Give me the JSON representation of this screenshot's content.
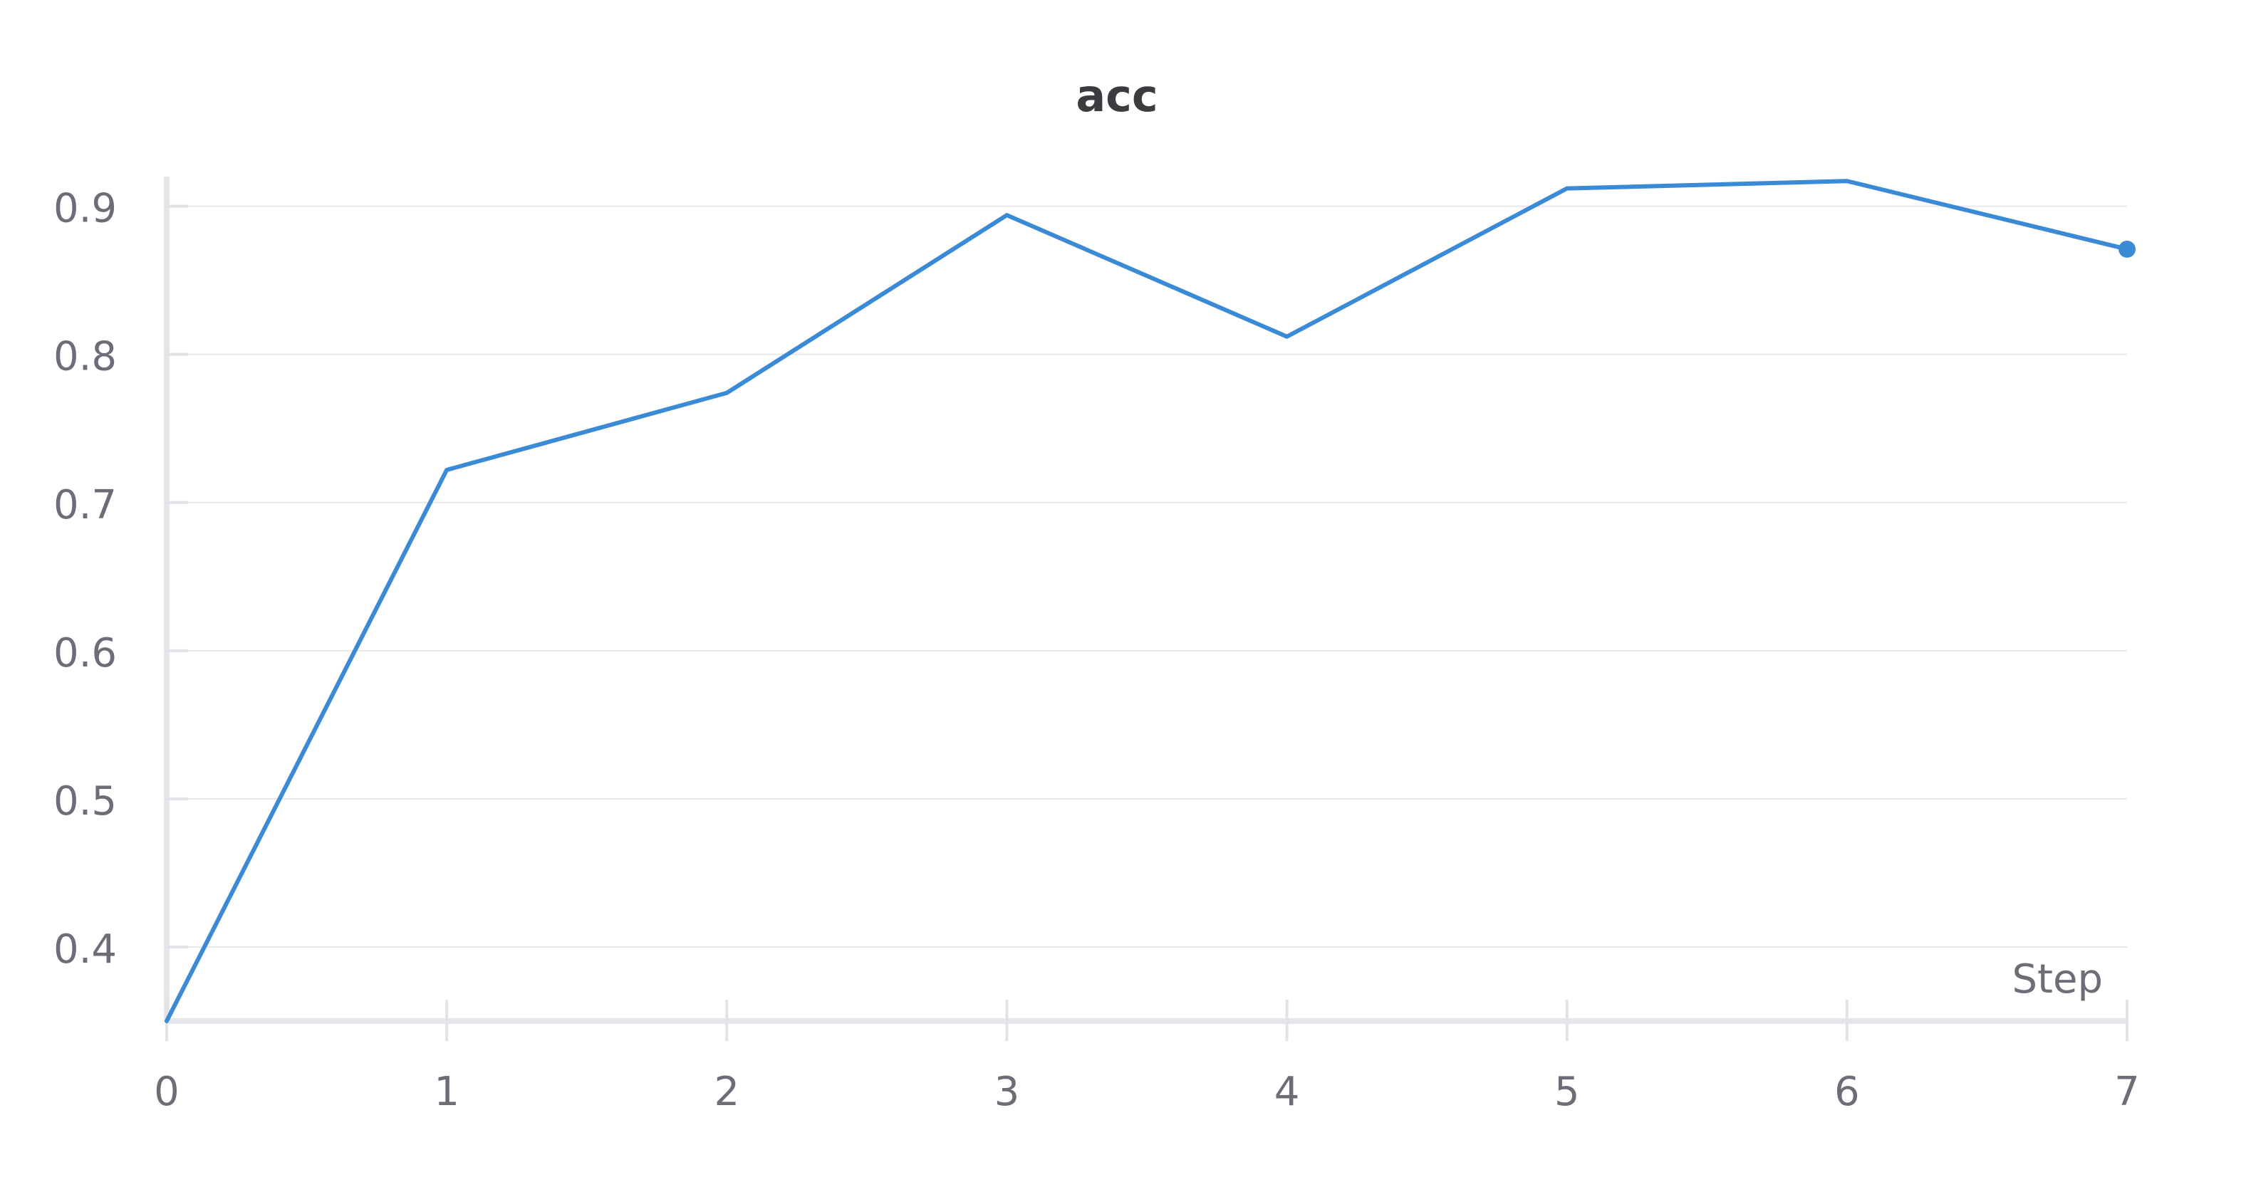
{
  "chart_data": {
    "type": "line",
    "title": "acc",
    "xlabel": "Step",
    "ylabel": "",
    "x": [
      0,
      1,
      2,
      3,
      4,
      5,
      6,
      7
    ],
    "series": [
      {
        "values": [
          0.35,
          0.722,
          0.774,
          0.894,
          0.812,
          0.912,
          0.917,
          0.871
        ],
        "color": "#3a8ad6"
      }
    ],
    "x_ticks": [
      "0",
      "1",
      "2",
      "3",
      "4",
      "5",
      "6",
      "7"
    ],
    "y_ticks": [
      "0.4",
      "0.5",
      "0.6",
      "0.7",
      "0.8",
      "0.9"
    ],
    "xlim": [
      0,
      7
    ],
    "ylim": [
      0.35,
      0.92
    ],
    "grid": true
  }
}
